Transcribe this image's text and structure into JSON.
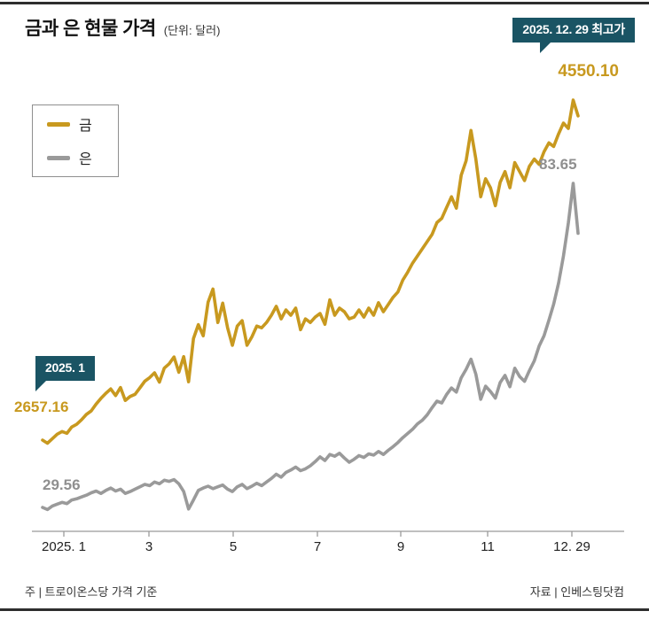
{
  "header": {
    "title": "금과 은 현물 가격",
    "unit": "(단위: 달러)"
  },
  "annotations": {
    "peak_badge": "2025. 12. 29 최고가",
    "start_badge": "2025. 1",
    "gold_peak_value": "4550.10",
    "gold_start_value": "2657.16",
    "silver_start_value": "29.56",
    "silver_peak_value": "83.65"
  },
  "legend": {
    "items": [
      {
        "label": "금",
        "color": "#c8991f"
      },
      {
        "label": "은",
        "color": "#9a9a9a"
      }
    ]
  },
  "footer": {
    "note": "주 | 트로이온스당 가격 기준",
    "source": "자료 | 인베스팅닷컴"
  },
  "colors": {
    "gold": "#c8991f",
    "silver": "#9a9a9a",
    "badge": "#1a5464"
  },
  "chart_data": {
    "type": "line",
    "title": "금과 은 현물 가격 (단위: 달러)",
    "x_ticks": [
      "2025. 1",
      "3",
      "5",
      "7",
      "9",
      "11",
      "12. 29"
    ],
    "x_range_note": "2025. 1 ~ 2025. 12. 29",
    "grid": false,
    "legend_position": "upper-left",
    "series": [
      {
        "name": "금",
        "color": "#c8991f",
        "start_value": 2657.16,
        "peak_value": 4550.1,
        "peak_date": "2025. 12. 29",
        "values": [
          2657.16,
          2640,
          2665,
          2690,
          2705,
          2695,
          2730,
          2745,
          2770,
          2800,
          2820,
          2858,
          2890,
          2918,
          2942,
          2905,
          2950,
          2878,
          2900,
          2912,
          2948,
          2985,
          3005,
          3032,
          2980,
          3058,
          3082,
          3120,
          3035,
          3122,
          2982,
          3222,
          3300,
          3238,
          3425,
          3498,
          3312,
          3420,
          3282,
          3185,
          3292,
          3322,
          3185,
          3232,
          3292,
          3282,
          3312,
          3352,
          3402,
          3332,
          3382,
          3352,
          3392,
          3272,
          3332,
          3312,
          3342,
          3362,
          3302,
          3438,
          3352,
          3392,
          3372,
          3332,
          3342,
          3382,
          3342,
          3392,
          3352,
          3422,
          3372,
          3412,
          3452,
          3482,
          3548,
          3592,
          3642,
          3682,
          3722,
          3762,
          3802,
          3868,
          3892,
          3952,
          4012,
          3948,
          4132,
          4212,
          4381,
          4222,
          4012,
          4112,
          4062,
          3962,
          4092,
          4152,
          4062,
          4202,
          4152,
          4102,
          4182,
          4222,
          4192,
          4262,
          4312,
          4292,
          4362,
          4422,
          4392,
          4550.1,
          4462
        ]
      },
      {
        "name": "은",
        "color": "#9a9a9a",
        "start_value": 29.56,
        "peak_value": 83.65,
        "peak_date": "2025. 12. 29",
        "values": [
          29.56,
          29.2,
          29.8,
          30.1,
          30.4,
          30.2,
          30.8,
          31.0,
          31.3,
          31.6,
          32.0,
          32.3,
          31.9,
          32.4,
          32.8,
          32.3,
          32.6,
          31.9,
          32.2,
          32.6,
          33.0,
          33.4,
          33.2,
          33.8,
          33.5,
          34.1,
          33.9,
          34.2,
          33.5,
          32.2,
          29.3,
          30.8,
          32.4,
          32.8,
          33.1,
          32.7,
          33.0,
          33.3,
          32.6,
          32.2,
          33.0,
          33.4,
          32.7,
          33.1,
          33.6,
          33.2,
          33.8,
          34.4,
          35.1,
          34.6,
          35.4,
          35.8,
          36.3,
          35.7,
          36.0,
          36.5,
          37.2,
          38.0,
          37.4,
          38.4,
          38.1,
          38.6,
          37.8,
          37.1,
          37.6,
          38.2,
          37.9,
          38.5,
          38.3,
          38.9,
          38.4,
          39.1,
          39.7,
          40.4,
          41.2,
          41.9,
          42.6,
          43.5,
          44.1,
          45.0,
          46.2,
          47.3,
          47.0,
          48.4,
          49.5,
          48.8,
          51.2,
          52.6,
          54.3,
          51.8,
          47.6,
          49.8,
          48.9,
          47.8,
          50.4,
          51.6,
          49.7,
          52.8,
          51.4,
          50.6,
          52.4,
          54.0,
          56.5,
          58.2,
          60.8,
          63.5,
          67.0,
          71.5,
          77.0,
          83.65,
          75.3
        ]
      }
    ],
    "y_domains": {
      "금": [
        2600,
        4600
      ],
      "은": [
        29,
        84
      ]
    }
  }
}
